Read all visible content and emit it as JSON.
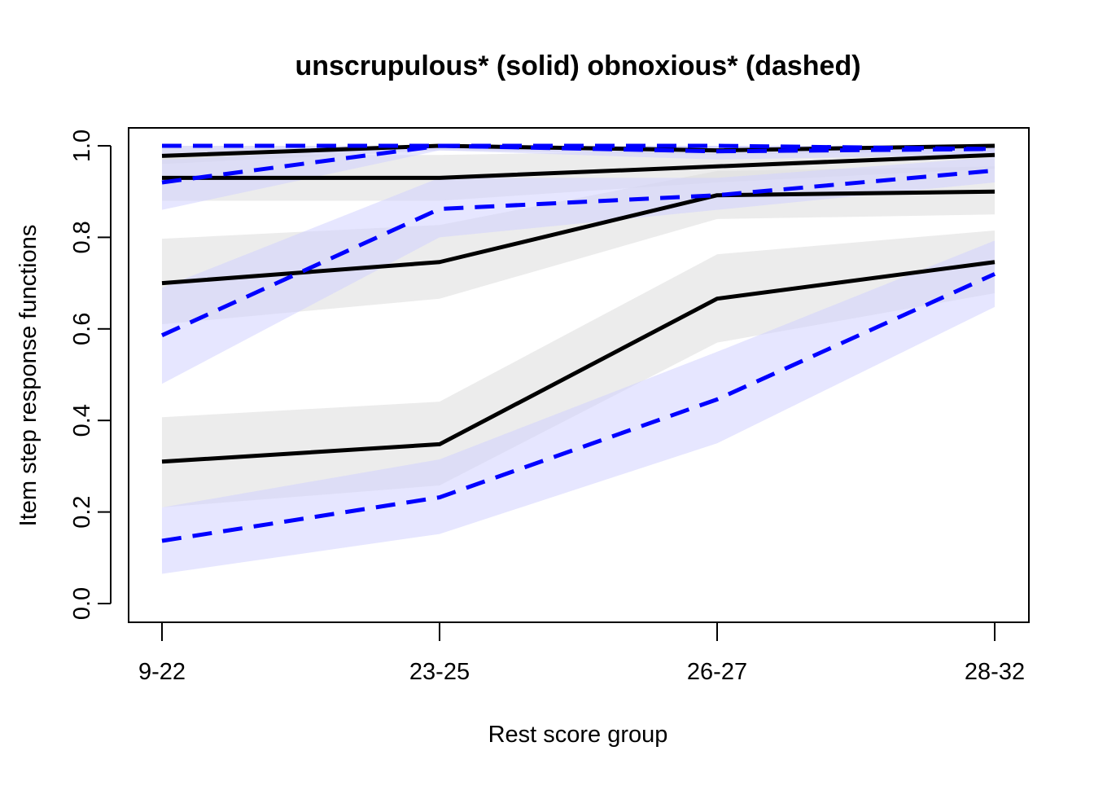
{
  "chart_data": {
    "type": "line",
    "title": "unscrupulous* (solid) obnoxious* (dashed)",
    "xlabel": "Rest score group",
    "ylabel": "Item step response functions",
    "categories": [
      "9-22",
      "23-25",
      "26-27",
      "28-32"
    ],
    "ylim": [
      0,
      1
    ],
    "yticks": [
      "0.0",
      "0.2",
      "0.4",
      "0.6",
      "0.8",
      "1.0"
    ],
    "grid": false,
    "series": [
      {
        "item": "unscrupulous",
        "style": "solid",
        "color": "#000000",
        "band_color": "#dcdcdc",
        "values": [
          0.978,
          1.0,
          0.99,
          1.0
        ],
        "lower": [
          0.96,
          0.99,
          0.98,
          0.99
        ],
        "upper": [
          1.0,
          1.0,
          1.0,
          1.0
        ]
      },
      {
        "item": "unscrupulous",
        "style": "solid",
        "color": "#000000",
        "band_color": "#dcdcdc",
        "values": [
          0.93,
          0.93,
          0.955,
          0.98
        ],
        "lower": [
          0.88,
          0.88,
          0.92,
          0.95
        ],
        "upper": [
          0.98,
          0.98,
          0.99,
          1.0
        ]
      },
      {
        "item": "unscrupulous",
        "style": "solid",
        "color": "#000000",
        "band_color": "#dcdcdc",
        "values": [
          0.7,
          0.746,
          0.892,
          0.9
        ],
        "lower": [
          0.61,
          0.666,
          0.84,
          0.85
        ],
        "upper": [
          0.797,
          0.827,
          0.945,
          0.955
        ]
      },
      {
        "item": "unscrupulous",
        "style": "solid",
        "color": "#000000",
        "band_color": "#dcdcdc",
        "values": [
          0.31,
          0.348,
          0.666,
          0.746
        ],
        "lower": [
          0.21,
          0.258,
          0.57,
          0.678
        ],
        "upper": [
          0.407,
          0.441,
          0.763,
          0.815
        ]
      },
      {
        "item": "obnoxious",
        "style": "dashed",
        "color": "#0000ff",
        "band_color": "#d2d2ff",
        "values": [
          1.0,
          1.0,
          1.0,
          0.993
        ],
        "lower": [
          0.98,
          0.99,
          0.99,
          0.98
        ],
        "upper": [
          1.0,
          1.0,
          1.0,
          1.0
        ]
      },
      {
        "item": "obnoxious",
        "style": "dashed",
        "color": "#0000ff",
        "band_color": "#d2d2ff",
        "values": [
          0.92,
          1.0,
          0.988,
          0.993
        ],
        "lower": [
          0.86,
          0.99,
          0.97,
          0.98
        ],
        "upper": [
          0.97,
          1.0,
          1.0,
          1.0
        ]
      },
      {
        "item": "obnoxious",
        "style": "dashed",
        "color": "#0000ff",
        "band_color": "#d2d2ff",
        "values": [
          0.586,
          0.862,
          0.892,
          0.946
        ],
        "lower": [
          0.48,
          0.8,
          0.86,
          0.92
        ],
        "upper": [
          0.69,
          0.93,
          0.93,
          0.975
        ]
      },
      {
        "item": "obnoxious",
        "style": "dashed",
        "color": "#0000ff",
        "band_color": "#d2d2ff",
        "values": [
          0.137,
          0.232,
          0.446,
          0.72
        ],
        "lower": [
          0.065,
          0.152,
          0.35,
          0.648
        ],
        "upper": [
          0.21,
          0.315,
          0.55,
          0.793
        ]
      }
    ]
  }
}
